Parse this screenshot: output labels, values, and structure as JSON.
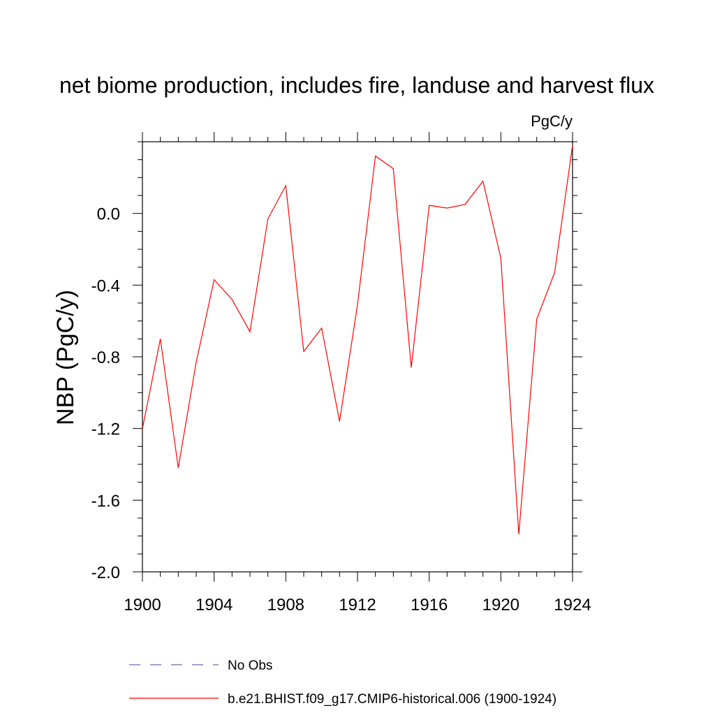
{
  "chart_data": {
    "type": "line",
    "title": "net biome production, includes fire, landuse and harvest flux",
    "units_label": "PgC/y",
    "ylabel": "NBP  (PgC/y)",
    "xlabel": "",
    "xlim": [
      1900,
      1924
    ],
    "ylim": [
      -2.0,
      0.4
    ],
    "x_ticks": [
      1900,
      1904,
      1908,
      1912,
      1916,
      1920,
      1924
    ],
    "x_tick_labels": [
      "1900",
      "1904",
      "1908",
      "1912",
      "1916",
      "1920",
      "1924"
    ],
    "y_ticks": [
      -2.0,
      -1.6,
      -1.2,
      -0.8,
      -0.4,
      0.0
    ],
    "y_tick_labels": [
      "-2.0",
      "-1.6",
      "-1.2",
      "-0.8",
      "-0.4",
      "0.0"
    ],
    "grid": false,
    "legend_position": "bottom",
    "x": [
      1900,
      1901,
      1902,
      1903,
      1904,
      1905,
      1906,
      1907,
      1908,
      1909,
      1910,
      1911,
      1912,
      1913,
      1914,
      1915,
      1916,
      1917,
      1918,
      1919,
      1920,
      1921,
      1922,
      1923,
      1924
    ],
    "series": [
      {
        "name": "b.e21.BHIST.f09_g17.CMIP6-historical.006 (1900-1924)",
        "color": "#ff0000",
        "style": "solid",
        "values": [
          -1.2,
          -0.7,
          -1.42,
          -0.83,
          -0.37,
          -0.48,
          -0.66,
          -0.03,
          0.155,
          -0.77,
          -0.64,
          -1.16,
          -0.51,
          0.32,
          0.25,
          -0.86,
          0.045,
          0.03,
          0.05,
          0.18,
          -0.25,
          -1.79,
          -0.59,
          -0.33,
          0.38
        ]
      }
    ],
    "legend": [
      {
        "label": "No Obs",
        "color": "#6a6ab0",
        "style": "dashed"
      },
      {
        "label": "b.e21.BHIST.f09_g17.CMIP6-historical.006 (1900-1924)",
        "color": "#ff0000",
        "style": "solid"
      }
    ]
  }
}
